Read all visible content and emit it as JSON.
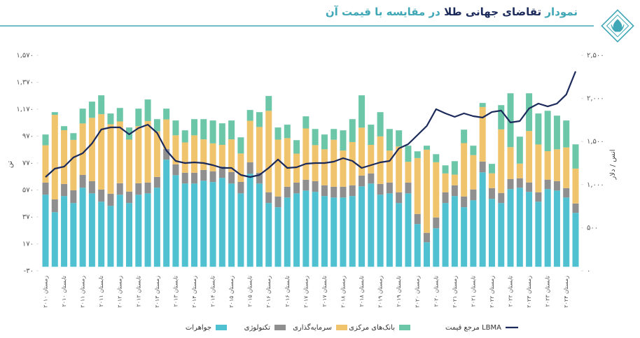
{
  "chart_data": {
    "type": "bar",
    "stacked": true,
    "title": [
      "نمودار",
      "تقاضای جهانی طلا",
      "در مقایسه با قیمت آن"
    ],
    "title_colors": [
      "#3fa7b5",
      "#1b2a5a",
      "#3fa7b5"
    ],
    "ylabel": "تن",
    "y2label": "انس / دلار",
    "categories": [
      "زمستان ۲۰۱۰",
      null,
      "تابستان ۲۰۱۰",
      null,
      "زمستان ۲۰۱۱",
      null,
      "تابستان ۲۰۱۱",
      null,
      "زمستان ۲۰۱۲",
      null,
      "تابستان ۲۰۱۲",
      null,
      "زمستان ۲۰۱۳",
      null,
      "تابستان ۲۰۱۳",
      null,
      "زمستان ۲۰۱۴",
      null,
      "تابستان ۲۰۱۴",
      null,
      "زمستان ۲۰۱۵",
      null,
      "تابستان ۲۰۱۵",
      null,
      "زمستان ۲۰۱۶",
      null,
      "تابستان ۲۰۱۶",
      null,
      "زمستان ۲۰۱۷",
      null,
      "تابستان ۲۰۱۷",
      null,
      "زمستان ۲۰۱۸",
      null,
      "تابستان ۲۰۱۸",
      null,
      "زمستان ۲۰۱۹",
      null,
      "تابستان ۲۰۱۹",
      null,
      "زمستان ۲۰۲۰",
      null,
      "تابستان ۲۰۲۰",
      null,
      "زمستان ۲۰۲۱",
      null,
      "تابستان ۲۰۲۱",
      null,
      "زمستان ۲۰۲۲",
      null,
      "تابستان ۲۰۲۲",
      null,
      "زمستان ۲۰۲۳",
      null,
      "تابستان ۲۰۲۳",
      null,
      "زمستان ۲۰۲۴",
      null
    ],
    "series": [
      {
        "name": "جواهرات",
        "color": "#4fc1d0",
        "values": [
          535,
          405,
          525,
          473,
          587,
          545,
          483,
          452,
          535,
          473,
          535,
          545,
          587,
          795,
          680,
          618,
          618,
          639,
          629,
          660,
          618,
          545,
          690,
          618,
          473,
          442,
          514,
          545,
          566,
          556,
          525,
          514,
          514,
          525,
          597,
          618,
          535,
          545,
          473,
          545,
          317,
          182,
          286,
          473,
          525,
          442,
          494,
          701,
          504,
          473,
          577,
          587,
          556,
          483,
          577,
          566,
          514,
          400
        ]
      },
      {
        "name": "تکنولوژی",
        "color": "#8f8f8f",
        "values": [
          90,
          95,
          90,
          95,
          95,
          90,
          90,
          90,
          85,
          85,
          85,
          80,
          80,
          80,
          80,
          80,
          80,
          80,
          80,
          85,
          85,
          85,
          85,
          80,
          80,
          80,
          80,
          80,
          80,
          80,
          80,
          80,
          80,
          80,
          80,
          75,
          80,
          80,
          80,
          80,
          75,
          70,
          80,
          80,
          80,
          80,
          80,
          80,
          80,
          75,
          75,
          70,
          70,
          70,
          70,
          70,
          70,
          70
        ]
      },
      {
        "name": "سرمایه‌گذاری",
        "color": "#f0c36d",
        "values": [
          277,
          628,
          399,
          374,
          382,
          471,
          560,
          516,
          459,
          386,
          424,
          457,
          339,
          219,
          216,
          225,
          278,
          227,
          207,
          160,
          243,
          211,
          309,
          340,
          605,
          422,
          361,
          215,
          381,
          267,
          267,
          349,
          269,
          321,
          356,
          212,
          353,
          238,
          340,
          154,
          415,
          617,
          410,
          140,
          79,
          396,
          255,
          405,
          110,
          472,
          236,
          109,
          382,
          355,
          211,
          236,
          302,
          259
        ]
      },
      {
        "name": "بانک‌های مرکزی",
        "color": "#6cc6a8",
        "values": [
          80,
          20,
          30,
          50,
          110,
          120,
          140,
          80,
          100,
          90,
          130,
          160,
          90,
          80,
          110,
          90,
          120,
          150,
          170,
          160,
          140,
          120,
          80,
          110,
          110,
          90,
          100,
          100,
          90,
          120,
          110,
          80,
          150,
          170,
          240,
          150,
          180,
          160,
          120,
          120,
          50,
          30,
          60,
          60,
          100,
          100,
          70,
          30,
          70,
          180,
          400,
          200,
          280,
          230,
          300,
          250,
          200,
          180
        ]
      },
      {
        "name": "مرجع قیمت LBMA",
        "color": "#1b2a5a",
        "type": "line",
        "axis": "y2",
        "values": [
          1088,
          1185,
          1209,
          1315,
          1364,
          1477,
          1640,
          1664,
          1664,
          1583,
          1656,
          1696,
          1599,
          1396,
          1274,
          1250,
          1258,
          1250,
          1226,
          1193,
          1193,
          1112,
          1088,
          1112,
          1193,
          1291,
          1193,
          1201,
          1242,
          1250,
          1250,
          1266,
          1307,
          1274,
          1193,
          1226,
          1258,
          1274,
          1420,
          1469,
          1575,
          1680,
          1875,
          1826,
          1786,
          1826,
          1794,
          1778,
          1842,
          1859,
          1721,
          1737,
          1883,
          1940,
          1907,
          1940,
          2045,
          2313
        ]
      }
    ],
    "ylim": [
      -30,
      1570
    ],
    "yticks": [
      {
        "value": -30,
        "label": "-۳۰"
      },
      {
        "value": 170,
        "label": "۱۷۰"
      },
      {
        "value": 370,
        "label": "۳۷۰"
      },
      {
        "value": 570,
        "label": "۵۷۰"
      },
      {
        "value": 770,
        "label": "۷۷۰"
      },
      {
        "value": 970,
        "label": "۹۷۰"
      },
      {
        "value": 1170,
        "label": "۱,۱۷۰"
      },
      {
        "value": 1370,
        "label": "۱,۳۷۰"
      },
      {
        "value": 1570,
        "label": "۱,۵۷۰"
      }
    ],
    "y2lim": [
      0,
      2500
    ],
    "y2ticks": [
      {
        "value": 0,
        "label": "۰"
      },
      {
        "value": 500,
        "label": "۵۰۰"
      },
      {
        "value": 1000,
        "label": "۱,۰۰۰"
      },
      {
        "value": 1500,
        "label": "۱,۵۰۰"
      },
      {
        "value": 2000,
        "label": "۲,۰۰۰"
      },
      {
        "value": 2500,
        "label": "۲,۵۰۰"
      }
    ],
    "grid": false
  }
}
